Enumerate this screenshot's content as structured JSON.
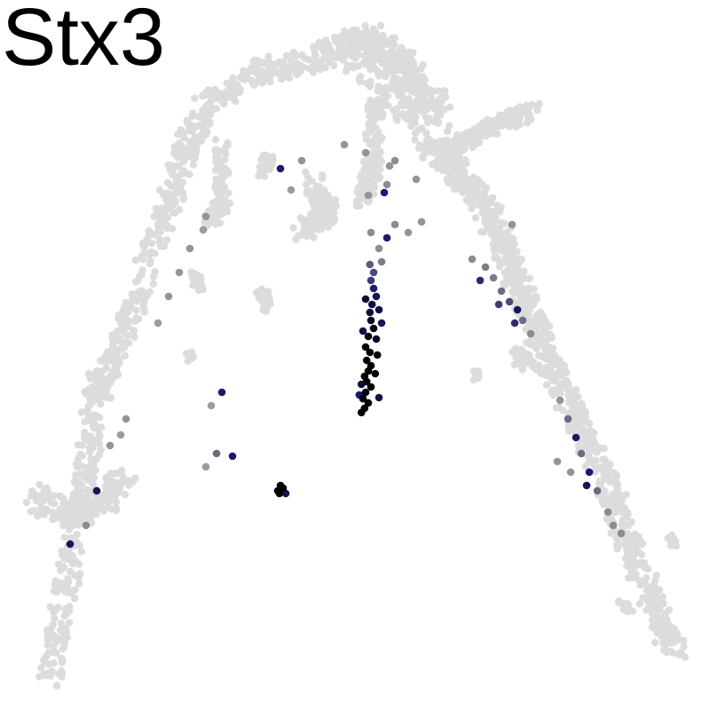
{
  "chart_data": {
    "type": "scatter",
    "title": "Stx3",
    "xlabel": "",
    "ylabel": "",
    "axes_visible": false,
    "grid": false,
    "legend": "none",
    "color_scale": {
      "low": "#dcdcdc",
      "mid": "#8c8c8c",
      "high": "#1a1a6e",
      "max": "#000000"
    },
    "series": [
      {
        "name": "",
        "points": [
          {
            "x": -2.3,
            "y": -1.9,
            "expr": 0.85
          },
          {
            "x": -2.6,
            "y": -1.85,
            "expr": 0.6
          },
          {
            "x": -2.8,
            "y": -2.1,
            "expr": 0.4
          },
          {
            "x": -5.35,
            "y": -3.55,
            "expr": 0.88
          },
          {
            "x": -4.85,
            "y": -2.55,
            "expr": 0.88
          },
          {
            "x": -5.05,
            "y": -3.2,
            "expr": 0.5
          },
          {
            "x": -4.6,
            "y": -1.7,
            "expr": 0.45
          },
          {
            "x": -4.4,
            "y": -1.5,
            "expr": 0.4
          },
          {
            "x": -4.3,
            "y": -1.2,
            "expr": 0.45
          },
          {
            "x": -2.5,
            "y": -0.7,
            "expr": 0.85
          },
          {
            "x": -2.7,
            "y": -0.95,
            "expr": 0.4
          },
          {
            "x": -1.4,
            "y": 3.5,
            "expr": 0.85
          },
          {
            "x": -1.0,
            "y": 3.65,
            "expr": 0.45
          },
          {
            "x": -1.2,
            "y": 3.1,
            "expr": 0.4
          },
          {
            "x": -2.8,
            "y": 2.6,
            "expr": 0.45
          },
          {
            "x": -3.1,
            "y": 2.0,
            "expr": 0.45
          },
          {
            "x": -3.3,
            "y": 1.55,
            "expr": 0.45
          },
          {
            "x": -3.5,
            "y": 1.1,
            "expr": 0.45
          },
          {
            "x": -3.7,
            "y": 0.6,
            "expr": 0.4
          },
          {
            "x": -2.85,
            "y": 2.35,
            "expr": 0.4
          },
          {
            "x": -0.2,
            "y": 3.95,
            "expr": 0.45
          },
          {
            "x": 0.2,
            "y": 3.8,
            "expr": 0.45
          },
          {
            "x": 0.65,
            "y": 3.55,
            "expr": 0.45
          },
          {
            "x": 0.6,
            "y": 3.2,
            "expr": 0.5
          },
          {
            "x": 0.25,
            "y": 3.0,
            "expr": 0.45
          },
          {
            "x": 0.3,
            "y": 2.3,
            "expr": 0.5
          },
          {
            "x": 0.45,
            "y": 2.0,
            "expr": 0.5
          },
          {
            "x": 0.5,
            "y": 1.75,
            "expr": 0.55
          },
          {
            "x": 0.75,
            "y": 2.45,
            "expr": 0.5
          },
          {
            "x": 1.0,
            "y": 2.3,
            "expr": 0.45
          },
          {
            "x": 1.25,
            "y": 2.5,
            "expr": 0.45
          },
          {
            "x": 0.75,
            "y": 3.65,
            "expr": 0.5
          },
          {
            "x": 1.15,
            "y": 3.3,
            "expr": 0.45
          },
          {
            "x": 0.55,
            "y": 3.05,
            "expr": 0.85
          },
          {
            "x": 0.6,
            "y": 2.2,
            "expr": 0.85
          },
          {
            "x": 2.2,
            "y": 1.8,
            "expr": 0.5
          },
          {
            "x": 2.45,
            "y": 1.65,
            "expr": 0.55
          },
          {
            "x": 2.6,
            "y": 1.45,
            "expr": 0.55
          },
          {
            "x": 2.75,
            "y": 1.2,
            "expr": 0.6
          },
          {
            "x": 2.9,
            "y": 1.0,
            "expr": 0.7
          },
          {
            "x": 3.05,
            "y": 0.85,
            "expr": 0.88
          },
          {
            "x": 3.15,
            "y": 0.65,
            "expr": 0.6
          },
          {
            "x": 3.3,
            "y": 0.4,
            "expr": 0.5
          },
          {
            "x": 2.35,
            "y": 1.4,
            "expr": 0.8
          },
          {
            "x": 2.7,
            "y": 0.95,
            "expr": 0.75
          },
          {
            "x": 3.0,
            "y": 0.6,
            "expr": 0.8
          },
          {
            "x": 2.95,
            "y": 2.45,
            "expr": 0.45
          },
          {
            "x": 3.85,
            "y": -0.85,
            "expr": 0.45
          },
          {
            "x": 4.0,
            "y": -1.2,
            "expr": 0.6
          },
          {
            "x": 4.15,
            "y": -1.55,
            "expr": 0.85
          },
          {
            "x": 4.25,
            "y": -1.85,
            "expr": 0.6
          },
          {
            "x": 4.4,
            "y": -2.2,
            "expr": 0.85
          },
          {
            "x": 4.35,
            "y": -2.45,
            "expr": 0.88
          },
          {
            "x": 4.55,
            "y": -2.55,
            "expr": 0.6
          },
          {
            "x": 4.75,
            "y": -2.95,
            "expr": 0.5
          },
          {
            "x": 4.85,
            "y": -3.2,
            "expr": 0.5
          },
          {
            "x": 4.05,
            "y": -2.2,
            "expr": 0.45
          },
          {
            "x": 3.8,
            "y": -2.0,
            "expr": 0.45
          },
          {
            "x": 5.0,
            "y": -3.35,
            "expr": 0.5
          },
          {
            "x": 0.3,
            "y": 1.4,
            "expr": 0.75
          },
          {
            "x": 0.35,
            "y": 1.25,
            "expr": 0.85
          },
          {
            "x": 0.4,
            "y": 1.1,
            "expr": 0.88
          },
          {
            "x": 0.32,
            "y": 0.95,
            "expr": 0.9
          },
          {
            "x": 0.28,
            "y": 0.8,
            "expr": 0.92
          },
          {
            "x": 0.3,
            "y": 0.65,
            "expr": 0.96
          },
          {
            "x": 0.35,
            "y": 0.5,
            "expr": 0.98
          },
          {
            "x": 0.25,
            "y": 0.35,
            "expr": 1.0
          },
          {
            "x": 0.2,
            "y": 0.15,
            "expr": 1.0
          },
          {
            "x": 0.28,
            "y": 0.05,
            "expr": 1.0
          },
          {
            "x": 0.22,
            "y": -0.1,
            "expr": 1.0
          },
          {
            "x": 0.3,
            "y": -0.2,
            "expr": 1.0
          },
          {
            "x": 0.25,
            "y": -0.3,
            "expr": 1.0
          },
          {
            "x": 0.18,
            "y": -0.4,
            "expr": 1.0
          },
          {
            "x": 0.22,
            "y": -0.5,
            "expr": 0.99
          },
          {
            "x": 0.3,
            "y": -0.6,
            "expr": 0.99
          },
          {
            "x": 0.2,
            "y": -0.7,
            "expr": 1.0
          },
          {
            "x": 0.15,
            "y": -0.82,
            "expr": 1.0
          },
          {
            "x": 0.25,
            "y": -0.9,
            "expr": 1.0
          },
          {
            "x": 0.18,
            "y": -1.0,
            "expr": 1.0
          },
          {
            "x": 0.12,
            "y": -1.08,
            "expr": 1.0
          },
          {
            "x": 0.45,
            "y": 0.85,
            "expr": 0.9
          },
          {
            "x": 0.5,
            "y": 0.6,
            "expr": 0.88
          },
          {
            "x": 0.4,
            "y": 0.3,
            "expr": 0.95
          },
          {
            "x": 0.42,
            "y": 0.0,
            "expr": 0.97
          },
          {
            "x": 0.12,
            "y": -0.55,
            "expr": 0.92
          },
          {
            "x": 0.08,
            "y": -0.75,
            "expr": 0.85
          },
          {
            "x": 0.38,
            "y": -0.35,
            "expr": 0.98
          },
          {
            "x": 0.15,
            "y": 0.45,
            "expr": 0.9
          },
          {
            "x": 0.35,
            "y": 1.55,
            "expr": 0.7
          },
          {
            "x": 0.28,
            "y": 1.7,
            "expr": 0.65
          },
          {
            "x": 0.2,
            "y": 1.05,
            "expr": 0.93
          },
          {
            "x": 0.45,
            "y": -0.8,
            "expr": 0.9
          },
          {
            "x": -1.4,
            "y": -2.45,
            "expr": 1.0
          },
          {
            "x": -1.35,
            "y": -2.5,
            "expr": 1.0
          },
          {
            "x": -1.45,
            "y": -2.55,
            "expr": 1.0
          },
          {
            "x": -1.3,
            "y": -2.6,
            "expr": 0.88
          },
          {
            "x": -1.42,
            "y": -2.6,
            "expr": 1.0
          }
        ]
      }
    ]
  }
}
